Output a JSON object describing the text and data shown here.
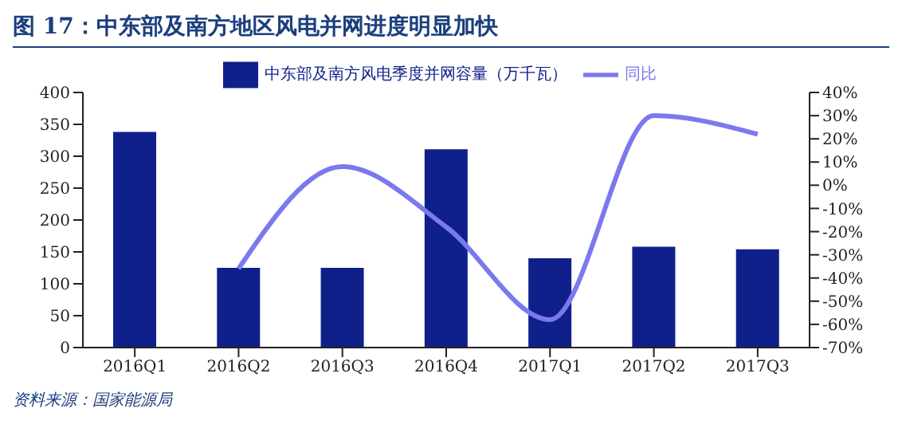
{
  "chart_data": {
    "type": "bar",
    "title": "图 17：中东部及南方地区风电并网进度明显加快",
    "categories": [
      "2016Q1",
      "2016Q2",
      "2016Q3",
      "2016Q4",
      "2017Q1",
      "2017Q2",
      "2017Q3"
    ],
    "series": [
      {
        "name": "中东部及南方风电季度并网容量（万千瓦）",
        "color": "#0f208a",
        "values": [
          338,
          125,
          125,
          311,
          140,
          158,
          154
        ]
      },
      {
        "name": "同比",
        "type": "line",
        "axis": "y2",
        "color": "#7b79ee",
        "marker": "none",
        "values": [
          null,
          -36,
          8,
          -18,
          -58,
          30,
          22
        ]
      }
    ],
    "ylim": [
      0,
      400
    ],
    "yticks": [
      0,
      50,
      100,
      150,
      200,
      250,
      300,
      350,
      400
    ],
    "y2lim": [
      -70,
      40
    ],
    "y2ticks": [
      {
        "value": -70,
        "label": "-70%"
      },
      {
        "value": -60,
        "label": "-60%"
      },
      {
        "value": -50,
        "label": "-50%"
      },
      {
        "value": -40,
        "label": "-40%"
      },
      {
        "value": -30,
        "label": "-30%"
      },
      {
        "value": -20,
        "label": "-20%"
      },
      {
        "value": -10,
        "label": "-10%"
      },
      {
        "value": 0,
        "label": "0%"
      },
      {
        "value": 10,
        "label": "10%"
      },
      {
        "value": 20,
        "label": "20%"
      },
      {
        "value": 30,
        "label": "30%"
      },
      {
        "value": 40,
        "label": "40%"
      }
    ],
    "grid": false,
    "legend": "top",
    "annotations": [
      "资料来源：国家能源局"
    ]
  }
}
